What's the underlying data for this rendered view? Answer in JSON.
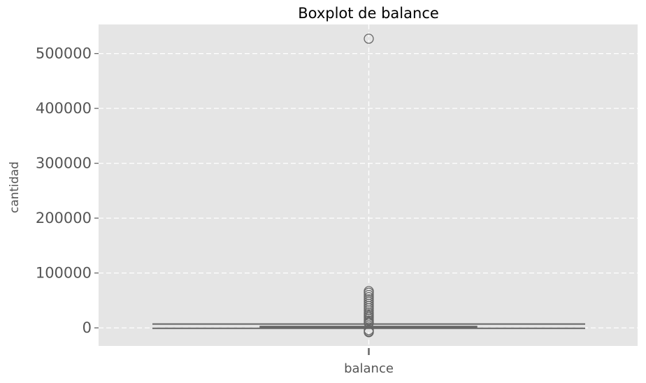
{
  "chart_data": {
    "type": "boxplot",
    "title": "Boxplot de balance",
    "xlabel": "",
    "ylabel": "cantidad",
    "categories": [
      "balance"
    ],
    "ylim": [
      -33000,
      553000
    ],
    "yticks": [
      0,
      100000,
      200000,
      300000,
      400000,
      500000
    ],
    "ytick_labels": [
      "0",
      "100000",
      "200000",
      "300000",
      "400000",
      "500000"
    ],
    "grid": true,
    "box": {
      "q1": 0,
      "median": 1000,
      "q3": 2800,
      "whisker_low": -800,
      "whisker_high": 7000
    },
    "outliers": [
      527000,
      67000,
      64000,
      60000,
      56000,
      52000,
      48000,
      44000,
      40000,
      36000,
      32000,
      28000,
      25000,
      22000,
      19000,
      16000,
      13000,
      10500,
      8500,
      -4000,
      -6500,
      -8000
    ],
    "colors": {
      "background": "#e5e5e5",
      "grid": "#ffffff",
      "line": "#666666",
      "box_fill": "#cfcfcf",
      "text": "#555555"
    }
  }
}
